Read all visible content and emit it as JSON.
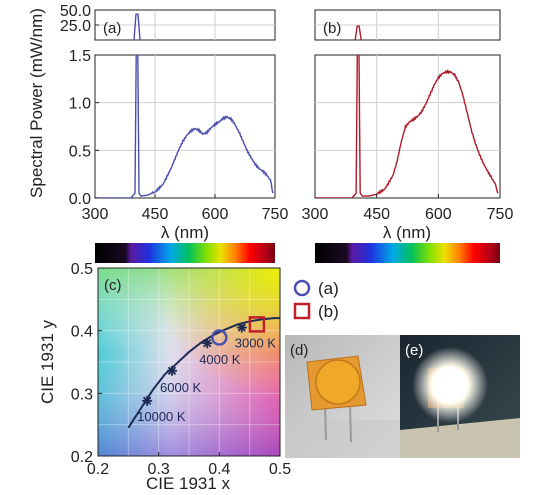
{
  "chart_data": [
    {
      "id": "a",
      "type": "line",
      "panel_label": "(a)",
      "xlabel": "λ (nm)",
      "ylabel": "Spectral Power (mW/nm)",
      "xlim": [
        300,
        750
      ],
      "ylim": [
        0,
        1.5
      ],
      "ylim_top": [
        0,
        50
      ],
      "x_ticks": [
        "300",
        "450",
        "600",
        "750"
      ],
      "y_ticks": [
        "0.0",
        "0.5",
        "1.0",
        "1.5"
      ],
      "y_ticks_top": [
        "25.0",
        "50.0"
      ],
      "color": "#4a4fb0",
      "peak": {
        "x": 405,
        "y": 43
      },
      "series": [
        {
          "x": [
            300,
            340,
            370,
            390,
            400,
            403,
            405,
            407,
            410,
            415,
            430,
            450,
            470,
            490,
            510,
            520,
            530,
            540,
            550,
            560,
            570,
            580,
            590,
            600,
            610,
            620,
            630,
            640,
            650,
            660,
            670,
            680,
            690,
            700,
            710,
            720,
            730,
            740,
            745
          ],
          "y": [
            0.0,
            0.0,
            0.0,
            0.0,
            0.05,
            1.5,
            1.5,
            1.5,
            0.05,
            0.02,
            0.03,
            0.06,
            0.15,
            0.32,
            0.52,
            0.6,
            0.66,
            0.7,
            0.72,
            0.7,
            0.66,
            0.68,
            0.73,
            0.77,
            0.8,
            0.84,
            0.86,
            0.84,
            0.78,
            0.7,
            0.6,
            0.5,
            0.42,
            0.35,
            0.3,
            0.27,
            0.23,
            0.17,
            0.05
          ]
        }
      ]
    },
    {
      "id": "b",
      "type": "line",
      "panel_label": "(b)",
      "xlabel": "λ (nm)",
      "xlim": [
        300,
        750
      ],
      "ylim": [
        0,
        1.5
      ],
      "ylim_top": [
        0,
        50
      ],
      "x_ticks": [
        "300",
        "450",
        "600",
        "750"
      ],
      "color": "#b01a2a",
      "peak": {
        "x": 405,
        "y": 23
      },
      "series": [
        {
          "x": [
            300,
            340,
            370,
            390,
            400,
            403,
            405,
            407,
            410,
            415,
            430,
            450,
            470,
            490,
            500,
            510,
            520,
            530,
            540,
            550,
            560,
            570,
            580,
            590,
            600,
            610,
            620,
            630,
            640,
            650,
            660,
            670,
            680,
            690,
            700,
            710,
            720,
            730,
            740,
            745
          ],
          "y": [
            0.0,
            0.0,
            0.0,
            0.0,
            0.05,
            1.5,
            1.5,
            1.5,
            0.05,
            0.02,
            0.02,
            0.04,
            0.1,
            0.25,
            0.4,
            0.6,
            0.75,
            0.8,
            0.82,
            0.85,
            0.9,
            0.98,
            1.08,
            1.18,
            1.26,
            1.31,
            1.33,
            1.33,
            1.3,
            1.22,
            1.08,
            0.9,
            0.72,
            0.57,
            0.45,
            0.35,
            0.27,
            0.2,
            0.13,
            0.05
          ]
        }
      ]
    },
    {
      "id": "c",
      "type": "scatter",
      "panel_label": "(c)",
      "xlabel": "CIE 1931 x",
      "ylabel": "CIE 1931 y",
      "xlim": [
        0.2,
        0.5
      ],
      "ylim": [
        0.2,
        0.5
      ],
      "x_ticks": [
        "0.2",
        "0.3",
        "0.4",
        "0.5"
      ],
      "y_ticks": [
        "0.2",
        "0.3",
        "0.4",
        "0.5"
      ],
      "planckian_locus": {
        "x": [
          0.25,
          0.27,
          0.29,
          0.31,
          0.33,
          0.35,
          0.37,
          0.39,
          0.41,
          0.43,
          0.45,
          0.47,
          0.49,
          0.5
        ],
        "y": [
          0.245,
          0.275,
          0.305,
          0.33,
          0.348,
          0.366,
          0.381,
          0.393,
          0.402,
          0.41,
          0.415,
          0.418,
          0.42,
          0.42
        ]
      },
      "cct_points": [
        {
          "label": "10000 K",
          "x": 0.281,
          "y": 0.288
        },
        {
          "label": "6000 K",
          "x": 0.322,
          "y": 0.336
        },
        {
          "label": "4000 K",
          "x": 0.38,
          "y": 0.38
        },
        {
          "label": "3000 K",
          "x": 0.437,
          "y": 0.405
        }
      ],
      "measured": [
        {
          "name": "(a)",
          "marker": "circle",
          "color": "#4a4fb0",
          "x": 0.4,
          "y": 0.389
        },
        {
          "name": "(b)",
          "marker": "square",
          "color": "#c0202a",
          "x": 0.462,
          "y": 0.41
        }
      ]
    }
  ],
  "photos": {
    "d_label": "(d)",
    "e_label": "(e)"
  }
}
